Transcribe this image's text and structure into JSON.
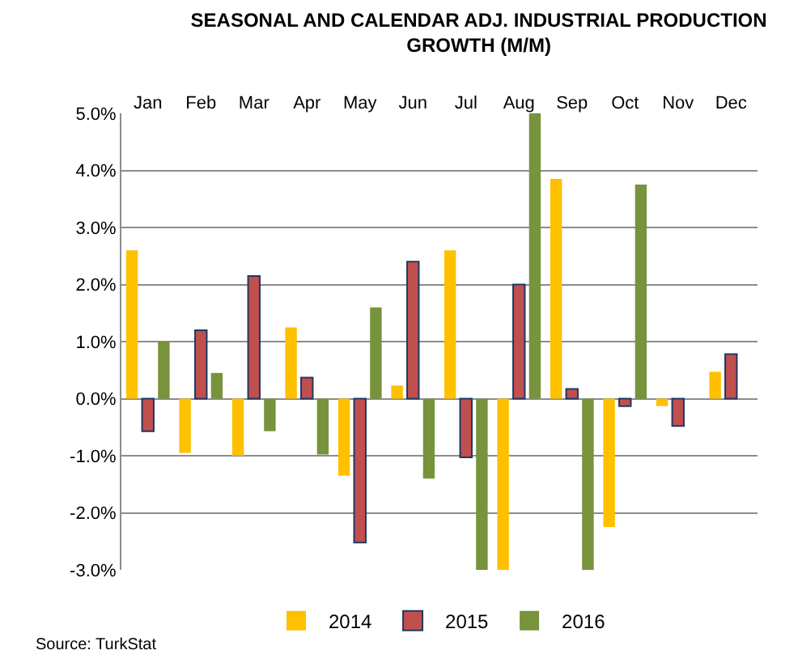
{
  "chart_data": {
    "type": "bar",
    "title": "SEASONAL AND CALENDAR ADJ. INDUSTRIAL PRODUCTION GROWTH (M/M)",
    "categories": [
      "Jan",
      "Feb",
      "Mar",
      "Apr",
      "May",
      "Jun",
      "Jul",
      "Aug",
      "Sep",
      "Oct",
      "Nov",
      "Dec"
    ],
    "series": [
      {
        "name": "2014",
        "color": "#ffc000",
        "values": [
          2.6,
          -0.95,
          -1.0,
          1.25,
          -1.35,
          0.23,
          2.6,
          -3.0,
          3.85,
          -2.25,
          -0.13,
          0.47
        ]
      },
      {
        "name": "2015",
        "color": "#c0504d",
        "values": [
          -0.57,
          1.2,
          2.15,
          0.37,
          -2.52,
          2.4,
          -1.03,
          2.0,
          0.17,
          -0.13,
          -0.48,
          0.78
        ]
      },
      {
        "name": "2016",
        "color": "#77933c",
        "values": [
          1.0,
          0.45,
          -0.57,
          -0.98,
          1.6,
          -1.4,
          -3.0,
          5.0,
          -3.0,
          3.75,
          null,
          null
        ]
      }
    ],
    "ylim": [
      -3.0,
      5.0
    ],
    "yticks": [
      {
        "value": -3,
        "label": "-3.0%"
      },
      {
        "value": -2,
        "label": "-2.0%"
      },
      {
        "value": -1,
        "label": "-1.0%"
      },
      {
        "value": 0,
        "label": "0.0%"
      },
      {
        "value": 1,
        "label": "1.0%"
      },
      {
        "value": 2,
        "label": "2.0%"
      },
      {
        "value": 3,
        "label": "3.0%"
      },
      {
        "value": 4,
        "label": "4.0%"
      },
      {
        "value": 5,
        "label": "5.0%"
      }
    ],
    "grid": "y",
    "legend": "bottom",
    "annotations": [
      "Source: TurkStat"
    ]
  }
}
